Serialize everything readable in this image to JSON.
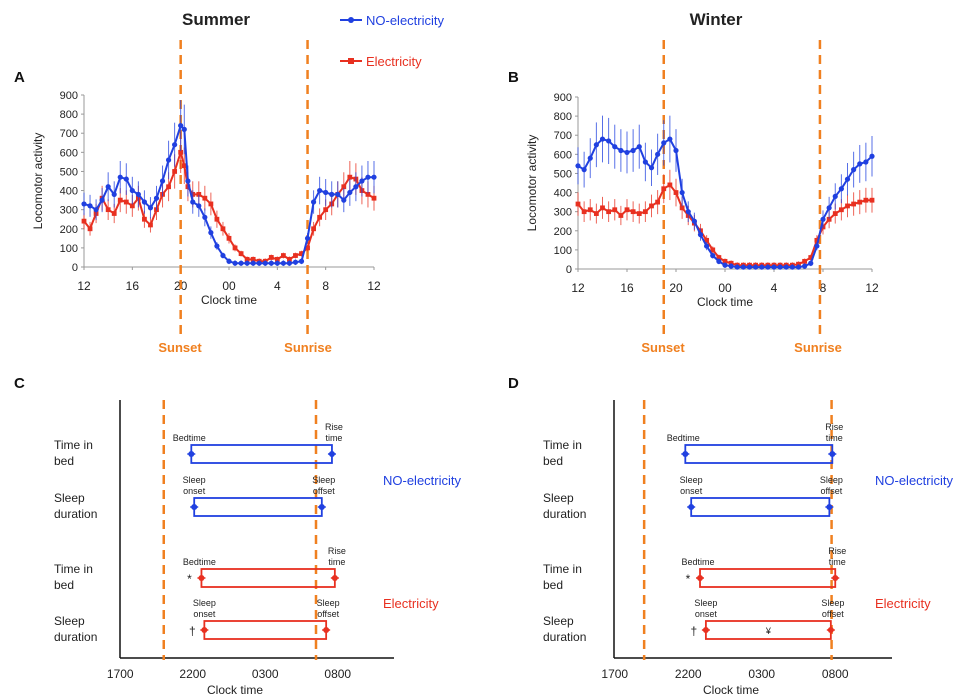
{
  "headers": {
    "summer": "Summer",
    "winter": "Winter"
  },
  "legend": {
    "no_electricity": "NO-electricity",
    "electricity": "Electricity"
  },
  "colors": {
    "no_electricity": "#2040E0",
    "electricity": "#E83020",
    "marker": "#F08020"
  },
  "markers": {
    "sunset": "Sunset",
    "sunrise": "Sunrise"
  },
  "panels": {
    "A": "A",
    "B": "B",
    "C": "C",
    "D": "D"
  },
  "chart_data": [
    {
      "id": "A",
      "type": "line",
      "season": "Summer",
      "ylabel": "Locomotor activity",
      "xlabel": "Clock time",
      "ylim": [
        0,
        900
      ],
      "yticks": [
        "0",
        "100",
        "200",
        "300",
        "400",
        "500",
        "600",
        "700",
        "800",
        "900"
      ],
      "x_ticks": [
        "12",
        "16",
        "20",
        "00",
        "4",
        "8",
        "12"
      ],
      "x_range_hours": [
        12,
        36
      ],
      "sunset": 20.0,
      "sunrise": 30.5,
      "series": [
        {
          "name": "NO-electricity",
          "color": "#2040E0",
          "values": [
            [
              12.0,
              330
            ],
            [
              12.5,
              320
            ],
            [
              13.0,
              300
            ],
            [
              13.5,
              350
            ],
            [
              14.0,
              420
            ],
            [
              14.5,
              380
            ],
            [
              15.0,
              470
            ],
            [
              15.5,
              460
            ],
            [
              16.0,
              400
            ],
            [
              16.5,
              380
            ],
            [
              17.0,
              340
            ],
            [
              17.5,
              310
            ],
            [
              18.0,
              360
            ],
            [
              18.5,
              450
            ],
            [
              19.0,
              560
            ],
            [
              19.5,
              640
            ],
            [
              20.0,
              740
            ],
            [
              20.3,
              720
            ],
            [
              20.6,
              450
            ],
            [
              21.0,
              340
            ],
            [
              21.5,
              320
            ],
            [
              22.0,
              260
            ],
            [
              22.5,
              180
            ],
            [
              23.0,
              110
            ],
            [
              23.5,
              60
            ],
            [
              24.0,
              30
            ],
            [
              24.5,
              20
            ],
            [
              25.0,
              20
            ],
            [
              25.5,
              20
            ],
            [
              26.0,
              20
            ],
            [
              26.5,
              20
            ],
            [
              27.0,
              20
            ],
            [
              27.5,
              20
            ],
            [
              28.0,
              20
            ],
            [
              28.5,
              20
            ],
            [
              29.0,
              20
            ],
            [
              29.5,
              25
            ],
            [
              30.0,
              30
            ],
            [
              30.5,
              150
            ],
            [
              31.0,
              340
            ],
            [
              31.5,
              400
            ],
            [
              32.0,
              390
            ],
            [
              32.5,
              380
            ],
            [
              33.0,
              380
            ],
            [
              33.5,
              350
            ],
            [
              34.0,
              390
            ],
            [
              34.5,
              420
            ],
            [
              35.0,
              450
            ],
            [
              35.5,
              470
            ],
            [
              36.0,
              470
            ]
          ]
        },
        {
          "name": "Electricity",
          "color": "#E83020",
          "values": [
            [
              12.0,
              240
            ],
            [
              12.5,
              200
            ],
            [
              13.0,
              280
            ],
            [
              13.5,
              360
            ],
            [
              14.0,
              300
            ],
            [
              14.5,
              280
            ],
            [
              15.0,
              350
            ],
            [
              15.5,
              340
            ],
            [
              16.0,
              320
            ],
            [
              16.5,
              360
            ],
            [
              17.0,
              250
            ],
            [
              17.5,
              220
            ],
            [
              18.0,
              300
            ],
            [
              18.5,
              380
            ],
            [
              19.0,
              420
            ],
            [
              19.5,
              500
            ],
            [
              20.0,
              600
            ],
            [
              20.3,
              530
            ],
            [
              20.6,
              420
            ],
            [
              21.0,
              380
            ],
            [
              21.5,
              380
            ],
            [
              22.0,
              360
            ],
            [
              22.5,
              330
            ],
            [
              23.0,
              250
            ],
            [
              23.5,
              200
            ],
            [
              24.0,
              150
            ],
            [
              24.5,
              100
            ],
            [
              25.0,
              70
            ],
            [
              25.5,
              40
            ],
            [
              26.0,
              40
            ],
            [
              26.5,
              30
            ],
            [
              27.0,
              30
            ],
            [
              27.5,
              50
            ],
            [
              28.0,
              40
            ],
            [
              28.5,
              60
            ],
            [
              29.0,
              40
            ],
            [
              29.5,
              60
            ],
            [
              30.0,
              70
            ],
            [
              30.5,
              100
            ],
            [
              31.0,
              200
            ],
            [
              31.5,
              260
            ],
            [
              32.0,
              300
            ],
            [
              32.5,
              330
            ],
            [
              33.0,
              380
            ],
            [
              33.5,
              420
            ],
            [
              34.0,
              470
            ],
            [
              34.5,
              460
            ],
            [
              35.0,
              400
            ],
            [
              35.5,
              380
            ],
            [
              36.0,
              360
            ]
          ]
        }
      ]
    },
    {
      "id": "B",
      "type": "line",
      "season": "Winter",
      "ylabel": "Locomotor activity",
      "xlabel": "Clock time",
      "ylim": [
        0,
        900
      ],
      "yticks": [
        "0",
        "100",
        "200",
        "300",
        "400",
        "500",
        "600",
        "700",
        "800",
        "900"
      ],
      "x_ticks": [
        "12",
        "16",
        "20",
        "00",
        "4",
        "8",
        "12"
      ],
      "x_range_hours": [
        12,
        36
      ],
      "sunset": 19.0,
      "sunrise": 31.75,
      "series": [
        {
          "name": "NO-electricity",
          "color": "#2040E0",
          "values": [
            [
              12.0,
              540
            ],
            [
              12.5,
              520
            ],
            [
              13.0,
              580
            ],
            [
              13.5,
              650
            ],
            [
              14.0,
              680
            ],
            [
              14.5,
              670
            ],
            [
              15.0,
              640
            ],
            [
              15.5,
              620
            ],
            [
              16.0,
              610
            ],
            [
              16.5,
              620
            ],
            [
              17.0,
              640
            ],
            [
              17.5,
              560
            ],
            [
              18.0,
              530
            ],
            [
              18.5,
              600
            ],
            [
              19.0,
              660
            ],
            [
              19.5,
              680
            ],
            [
              20.0,
              620
            ],
            [
              20.5,
              400
            ],
            [
              21.0,
              300
            ],
            [
              21.5,
              250
            ],
            [
              22.0,
              180
            ],
            [
              22.5,
              120
            ],
            [
              23.0,
              70
            ],
            [
              23.5,
              40
            ],
            [
              24.0,
              20
            ],
            [
              24.5,
              15
            ],
            [
              25.0,
              10
            ],
            [
              25.5,
              10
            ],
            [
              26.0,
              10
            ],
            [
              26.5,
              10
            ],
            [
              27.0,
              10
            ],
            [
              27.5,
              10
            ],
            [
              28.0,
              10
            ],
            [
              28.5,
              10
            ],
            [
              29.0,
              10
            ],
            [
              29.5,
              10
            ],
            [
              30.0,
              10
            ],
            [
              30.5,
              15
            ],
            [
              31.0,
              30
            ],
            [
              31.5,
              120
            ],
            [
              32.0,
              260
            ],
            [
              32.5,
              320
            ],
            [
              33.0,
              380
            ],
            [
              33.5,
              420
            ],
            [
              34.0,
              470
            ],
            [
              34.5,
              520
            ],
            [
              35.0,
              550
            ],
            [
              35.5,
              560
            ],
            [
              36.0,
              590
            ]
          ]
        },
        {
          "name": "Electricity",
          "color": "#E83020",
          "values": [
            [
              12.0,
              340
            ],
            [
              12.5,
              300
            ],
            [
              13.0,
              310
            ],
            [
              13.5,
              290
            ],
            [
              14.0,
              320
            ],
            [
              14.5,
              300
            ],
            [
              15.0,
              310
            ],
            [
              15.5,
              280
            ],
            [
              16.0,
              310
            ],
            [
              16.5,
              300
            ],
            [
              17.0,
              290
            ],
            [
              17.5,
              300
            ],
            [
              18.0,
              330
            ],
            [
              18.5,
              350
            ],
            [
              19.0,
              420
            ],
            [
              19.5,
              440
            ],
            [
              20.0,
              400
            ],
            [
              20.5,
              320
            ],
            [
              21.0,
              280
            ],
            [
              21.5,
              240
            ],
            [
              22.0,
              200
            ],
            [
              22.5,
              150
            ],
            [
              23.0,
              100
            ],
            [
              23.5,
              60
            ],
            [
              24.0,
              40
            ],
            [
              24.5,
              30
            ],
            [
              25.0,
              20
            ],
            [
              25.5,
              20
            ],
            [
              26.0,
              20
            ],
            [
              26.5,
              20
            ],
            [
              27.0,
              20
            ],
            [
              27.5,
              20
            ],
            [
              28.0,
              20
            ],
            [
              28.5,
              20
            ],
            [
              29.0,
              20
            ],
            [
              29.5,
              20
            ],
            [
              30.0,
              25
            ],
            [
              30.5,
              40
            ],
            [
              31.0,
              60
            ],
            [
              31.5,
              150
            ],
            [
              32.0,
              220
            ],
            [
              32.5,
              260
            ],
            [
              33.0,
              290
            ],
            [
              33.5,
              310
            ],
            [
              34.0,
              330
            ],
            [
              34.5,
              340
            ],
            [
              35.0,
              350
            ],
            [
              35.5,
              360
            ],
            [
              36.0,
              360
            ]
          ]
        }
      ]
    },
    {
      "id": "C",
      "type": "bar",
      "season": "Summer",
      "xlabel": "Clock time",
      "x_ticks": [
        "1700",
        "2200",
        "0300",
        "0800"
      ],
      "x_tick_hours": [
        17,
        22,
        27,
        32
      ],
      "x_range_hours": [
        14.5,
        34.5
      ],
      "sunset": 20.0,
      "sunrise": 30.5,
      "rows": [
        {
          "label_lines": [
            "Time in",
            "bed"
          ],
          "group": "NO-electricity",
          "start": 21.9,
          "end": 31.6,
          "start_label": [
            "Bedtime"
          ],
          "end_label": [
            "Rise",
            "time"
          ],
          "sig": ""
        },
        {
          "label_lines": [
            "Sleep",
            "duration"
          ],
          "group": "NO-electricity",
          "start": 22.1,
          "end": 30.9,
          "start_label": [
            "Sleep",
            "onset"
          ],
          "end_label": [
            "Sleep",
            "offset"
          ],
          "sig": ""
        },
        {
          "label_lines": [
            "Time in",
            "bed"
          ],
          "group": "Electricity",
          "start": 22.6,
          "end": 31.8,
          "start_label": [
            "Bedtime"
          ],
          "end_label": [
            "Rise",
            "time"
          ],
          "sig": "*"
        },
        {
          "label_lines": [
            "Sleep",
            "duration"
          ],
          "group": "Electricity",
          "start": 22.8,
          "end": 31.2,
          "start_label": [
            "Sleep",
            "onset"
          ],
          "end_label": [
            "Sleep",
            "offset"
          ],
          "sig": "†"
        }
      ]
    },
    {
      "id": "D",
      "type": "bar",
      "season": "Winter",
      "xlabel": "Clock time",
      "x_ticks": [
        "1700",
        "2200",
        "0300",
        "0800"
      ],
      "x_tick_hours": [
        17,
        22,
        27,
        32
      ],
      "x_range_hours": [
        14.5,
        34.5
      ],
      "sunset": 19.0,
      "sunrise": 31.75,
      "rows": [
        {
          "label_lines": [
            "Time in",
            "bed"
          ],
          "group": "NO-electricity",
          "start": 21.8,
          "end": 31.8,
          "start_label": [
            "Bedtime"
          ],
          "end_label": [
            "Rise",
            "time"
          ],
          "sig": ""
        },
        {
          "label_lines": [
            "Sleep",
            "duration"
          ],
          "group": "NO-electricity",
          "start": 22.2,
          "end": 31.6,
          "start_label": [
            "Sleep",
            "onset"
          ],
          "end_label": [
            "Sleep",
            "offset"
          ],
          "sig": ""
        },
        {
          "label_lines": [
            "Time in",
            "bed"
          ],
          "group": "Electricity",
          "start": 22.8,
          "end": 32.0,
          "start_label": [
            "Bedtime"
          ],
          "end_label": [
            "Rise",
            "time"
          ],
          "sig": "*"
        },
        {
          "label_lines": [
            "Sleep",
            "duration"
          ],
          "group": "Electricity",
          "start": 23.2,
          "end": 31.7,
          "start_label": [
            "Sleep",
            "onset"
          ],
          "end_label": [
            "Sleep",
            "offset"
          ],
          "sig": "†",
          "inner": "¥"
        }
      ]
    }
  ]
}
